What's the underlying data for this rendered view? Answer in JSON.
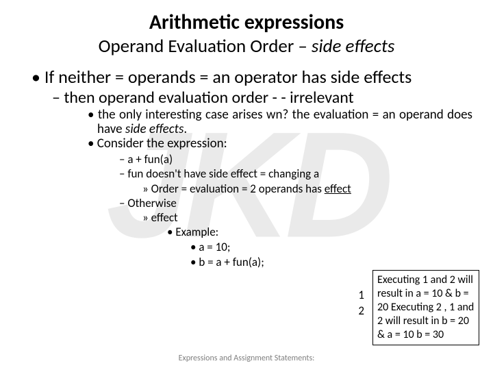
{
  "watermark": "JKD",
  "title": "Arithmetic expressions",
  "subtitle_plain": "Operand Evaluation Order – ",
  "subtitle_italic": "side effects",
  "bullets": {
    "l1_a": "If neither = operands = an operator has side effects",
    "l2_a": "then operand evaluation order - - irrelevant",
    "l3_a_part1": "the only interesting case arises wn? the evaluation = an operand does have ",
    "l3_a_italic": "side effects",
    "l3_a_part2": ".",
    "l3_b": "Consider the expression:",
    "l4_a": "a + fun(a)",
    "l4_b": "fun doesn't have side effect = changing a",
    "l5_a_part1": "Order = evaluation = 2 operands has ",
    "l5_a_underline": "effect",
    "l4_c": "Otherwise",
    "l5_b": "effect",
    "l6_a": "Example:",
    "l7_a": "a = 10;",
    "l7_b": "b = a + fun(a);"
  },
  "sidenums": {
    "n1": "1",
    "n2": "2"
  },
  "sidebox": "Executing  1 and 2 will result in a = 10 & b = 20\nExecuting  2 , 1 and 2 will result in b = 20 & a = 10 b = 30",
  "footer": "Expressions and Assignment Statements:"
}
